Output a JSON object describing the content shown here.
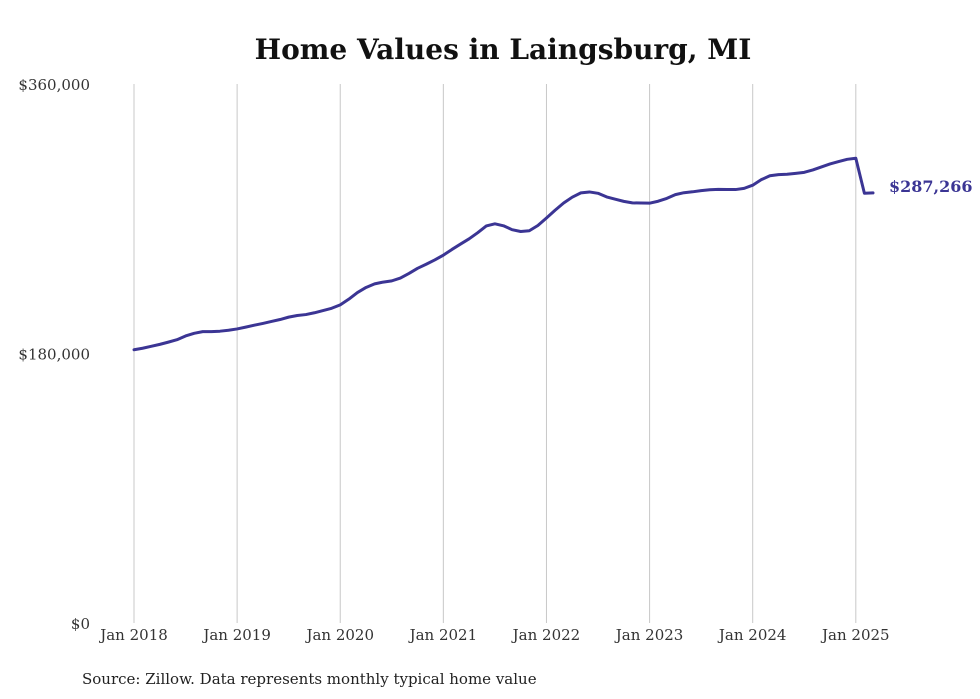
{
  "chart_data": {
    "type": "line",
    "title": "Home Values in Laingsburg, MI",
    "source": "Source: Zillow. Data represents monthly typical home value",
    "xlabel": "",
    "ylabel": "",
    "ylim": [
      0,
      360000
    ],
    "y_ticks": [
      {
        "value": 0,
        "label": "$0"
      },
      {
        "value": 180000,
        "label": "$180,000"
      },
      {
        "value": 360000,
        "label": "$360,000"
      }
    ],
    "x_range": [
      "2018-01",
      "2025-03"
    ],
    "x_ticks": [
      {
        "date": "2018-01",
        "label": "Jan 2018"
      },
      {
        "date": "2019-01",
        "label": "Jan 2019"
      },
      {
        "date": "2020-01",
        "label": "Jan 2020"
      },
      {
        "date": "2021-01",
        "label": "Jan 2021"
      },
      {
        "date": "2022-01",
        "label": "Jan 2022"
      },
      {
        "date": "2023-01",
        "label": "Jan 2023"
      },
      {
        "date": "2024-01",
        "label": "Jan 2024"
      },
      {
        "date": "2025-01",
        "label": "Jan 2025"
      }
    ],
    "grid": {
      "vertical": true,
      "horizontal": false
    },
    "line_color": "#3b3594",
    "end_label": "$287,266",
    "series": [
      {
        "x": [
          "2018-01",
          "2018-02",
          "2018-03",
          "2018-04",
          "2018-05",
          "2018-06",
          "2018-07",
          "2018-08",
          "2018-09",
          "2018-10",
          "2018-11",
          "2018-12",
          "2019-01",
          "2019-02",
          "2019-03",
          "2019-04",
          "2019-05",
          "2019-06",
          "2019-07",
          "2019-08",
          "2019-09",
          "2019-10",
          "2019-11",
          "2019-12",
          "2020-01",
          "2020-02",
          "2020-03",
          "2020-04",
          "2020-05",
          "2020-06",
          "2020-07",
          "2020-08",
          "2020-09",
          "2020-10",
          "2020-11",
          "2020-12",
          "2021-01",
          "2021-02",
          "2021-03",
          "2021-04",
          "2021-05",
          "2021-06",
          "2021-07",
          "2021-08",
          "2021-09",
          "2021-10",
          "2021-11",
          "2021-12",
          "2022-01",
          "2022-02",
          "2022-03",
          "2022-04",
          "2022-05",
          "2022-06",
          "2022-07",
          "2022-08",
          "2022-09",
          "2022-10",
          "2022-11",
          "2022-12",
          "2023-01",
          "2023-02",
          "2023-03",
          "2023-04",
          "2023-05",
          "2023-06",
          "2023-07",
          "2023-08",
          "2023-09",
          "2023-10",
          "2023-11",
          "2023-12",
          "2024-01",
          "2024-02",
          "2024-03",
          "2024-04",
          "2024-05",
          "2024-06",
          "2024-07",
          "2024-08",
          "2024-09",
          "2024-10",
          "2024-11",
          "2024-12",
          "2025-01",
          "2025-02",
          "2025-03"
        ],
        "y": [
          182500,
          183500,
          184800,
          186100,
          187600,
          189200,
          191700,
          193500,
          194600,
          194600,
          194900,
          195500,
          196400,
          197600,
          198900,
          200100,
          201400,
          202700,
          204300,
          205400,
          206000,
          207200,
          208700,
          210200,
          212500,
          216300,
          220700,
          224100,
          226500,
          227700,
          228500,
          230400,
          233500,
          236900,
          239600,
          242500,
          245700,
          249500,
          253100,
          256600,
          260700,
          265200,
          266600,
          265300,
          262700,
          261500,
          262000,
          265500,
          270500,
          275700,
          280500,
          284400,
          287300,
          287900,
          287000,
          284600,
          283100,
          281600,
          280600,
          280500,
          280400,
          281700,
          283600,
          286100,
          287400,
          288000,
          288800,
          289400,
          289600,
          289500,
          289500,
          290300,
          292400,
          296100,
          298700,
          299500,
          299700,
          300300,
          301000,
          302600,
          304600,
          306600,
          308200,
          309700,
          310400,
          287266,
          287266
        ]
      }
    ]
  }
}
